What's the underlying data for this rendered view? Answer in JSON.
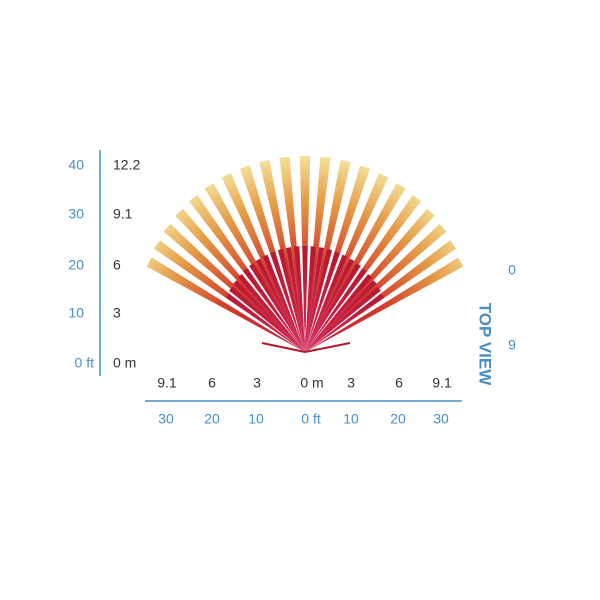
{
  "left_axis": {
    "feet": [
      "40",
      "30",
      "20",
      "10",
      "0 ft"
    ],
    "meters": [
      "12.2",
      "9.1",
      "6",
      "3",
      "0 m"
    ]
  },
  "bottom_axis": {
    "meters": [
      "9.1",
      "6",
      "3",
      "0 m",
      "3",
      "6",
      "9.1"
    ],
    "feet": [
      "30",
      "20",
      "10",
      "0 ft",
      "10",
      "20",
      "30"
    ]
  },
  "side": {
    "title": "TOP VIEW",
    "labels": [
      "0",
      "9"
    ]
  }
}
